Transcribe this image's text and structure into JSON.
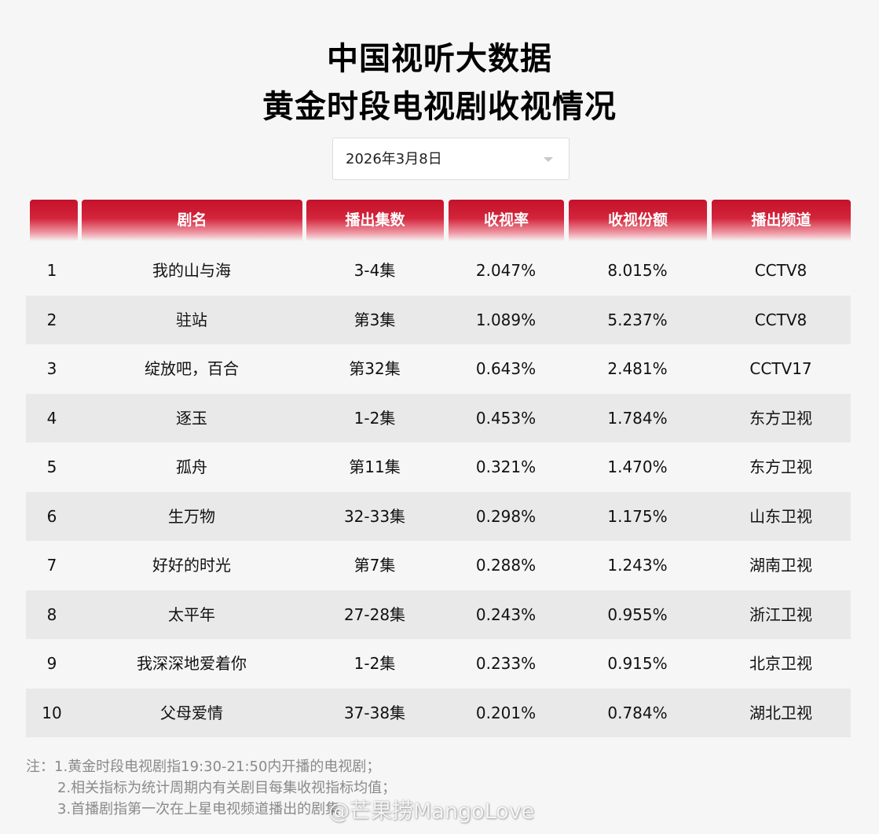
{
  "header": {
    "title_line1": "中国视听大数据",
    "title_line2": "黄金时段电视剧收视情况"
  },
  "date_select": {
    "value": "2026年3月8日",
    "icon": "chevron-down-icon"
  },
  "table": {
    "columns": [
      "",
      "剧名",
      "播出集数",
      "收视率",
      "收视份额",
      "播出频道"
    ],
    "rows": [
      {
        "rank": "1",
        "name": "我的山与海",
        "episodes": "3-4集",
        "rating": "2.047%",
        "share": "8.015%",
        "channel": "CCTV8"
      },
      {
        "rank": "2",
        "name": "驻站",
        "episodes": "第3集",
        "rating": "1.089%",
        "share": "5.237%",
        "channel": "CCTV8"
      },
      {
        "rank": "3",
        "name": "绽放吧，百合",
        "episodes": "第32集",
        "rating": "0.643%",
        "share": "2.481%",
        "channel": "CCTV17"
      },
      {
        "rank": "4",
        "name": "逐玉",
        "episodes": "1-2集",
        "rating": "0.453%",
        "share": "1.784%",
        "channel": "东方卫视"
      },
      {
        "rank": "5",
        "name": "孤舟",
        "episodes": "第11集",
        "rating": "0.321%",
        "share": "1.470%",
        "channel": "东方卫视"
      },
      {
        "rank": "6",
        "name": "生万物",
        "episodes": "32-33集",
        "rating": "0.298%",
        "share": "1.175%",
        "channel": "山东卫视"
      },
      {
        "rank": "7",
        "name": "好好的时光",
        "episodes": "第7集",
        "rating": "0.288%",
        "share": "1.243%",
        "channel": "湖南卫视"
      },
      {
        "rank": "8",
        "name": "太平年",
        "episodes": "27-28集",
        "rating": "0.243%",
        "share": "0.955%",
        "channel": "浙江卫视"
      },
      {
        "rank": "9",
        "name": "我深深地爱着你",
        "episodes": "1-2集",
        "rating": "0.233%",
        "share": "0.915%",
        "channel": "北京卫视"
      },
      {
        "rank": "10",
        "name": "父母爱情",
        "episodes": "37-38集",
        "rating": "0.201%",
        "share": "0.784%",
        "channel": "湖北卫视"
      }
    ]
  },
  "notes": {
    "line1": "注：1.黄金时段电视剧指19:30-21:50内开播的电视剧；",
    "line2": "2.相关指标为统计周期内有关剧目每集收视指标均值；",
    "line3": "3.首播剧指第一次在上星电视频道播出的剧集"
  },
  "watermark": {
    "text": "@芒果捞MangoLove"
  },
  "colors": {
    "header_red": "#c4122a",
    "row_alt": "#e9e9e9",
    "background": "#f6f6f6"
  }
}
